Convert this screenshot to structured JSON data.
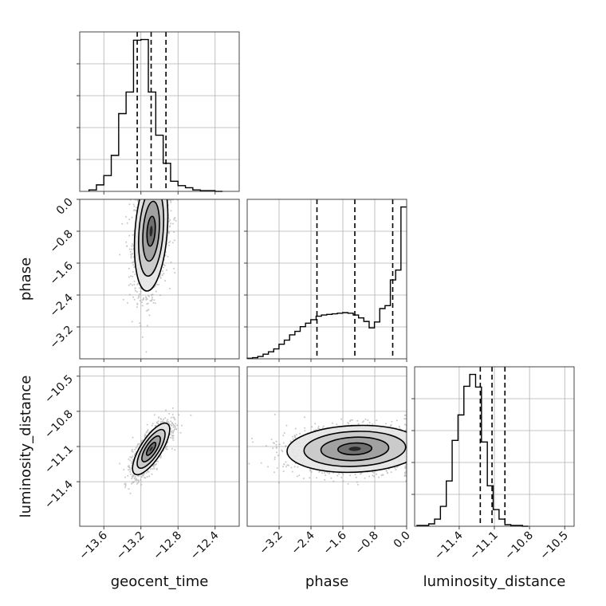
{
  "chart_data": {
    "type": "corner",
    "parameters": [
      {
        "name": "geocent_time",
        "range": [
          -13.86,
          -12.14
        ],
        "ticks": [
          -13.6,
          -13.2,
          -12.8,
          -12.4
        ],
        "tick_labels": [
          "−13.6",
          "−13.2",
          "−12.8",
          "−12.4"
        ],
        "quantiles": [
          -13.24,
          -13.09,
          -12.93
        ],
        "hist_edges_from": -13.76,
        "hist_bin_width": 0.08,
        "hist_counts": [
          2,
          9,
          22,
          50,
          108,
          138,
          210,
          211,
          138,
          78,
          39,
          14,
          8,
          5,
          2,
          1,
          1,
          0
        ]
      },
      {
        "name": "phase",
        "range": [
          -4.0,
          0.0
        ],
        "ticks": [
          -3.2,
          -2.4,
          -1.6,
          -0.8,
          0.0
        ],
        "tick_labels": [
          "−3.2",
          "−2.4",
          "−1.6",
          "−0.8",
          "0.0"
        ],
        "quantiles": [
          -2.25,
          -1.3,
          -0.35
        ],
        "hist_edges_from": -4.0,
        "hist_bin_width": 0.133,
        "hist_counts": [
          1,
          2,
          4,
          8,
          12,
          17,
          25,
          32,
          41,
          47,
          55,
          61,
          67,
          73,
          75,
          76,
          77,
          78,
          79,
          78,
          75,
          70,
          64,
          53,
          63,
          86,
          91,
          135,
          152,
          260
        ]
      },
      {
        "name": "luminosity_distance",
        "range": [
          -11.78,
          -10.42
        ],
        "ticks": [
          -11.4,
          -11.1,
          -10.8,
          -10.5
        ],
        "tick_labels": [
          "−11.4",
          "−11.1",
          "−10.8",
          "−10.5"
        ],
        "quantiles": [
          -11.22,
          -11.12,
          -11.01
        ],
        "hist_edges_from": -11.76,
        "hist_bin_width": 0.05,
        "hist_counts": [
          1,
          1,
          3,
          9,
          25,
          57,
          108,
          140,
          176,
          191,
          175,
          106,
          51,
          21,
          9,
          2,
          1,
          1,
          0
        ]
      }
    ],
    "pairs": [
      {
        "x": 0,
        "y": 1,
        "center": [
          -13.09,
          -0.8
        ],
        "spread": [
          0.09,
          0.75
        ],
        "corr": 0.25
      },
      {
        "x": 0,
        "y": 2,
        "center": [
          -13.09,
          -11.12
        ],
        "spread": [
          0.1,
          0.11
        ],
        "corr": 0.75
      },
      {
        "x": 1,
        "y": 2,
        "center": [
          -1.3,
          -11.12
        ],
        "spread": [
          0.85,
          0.1
        ],
        "corr": 0.1
      }
    ],
    "x_labels": [
      "geocent_time",
      "phase",
      "luminosity_distance"
    ],
    "y_labels": [
      "phase",
      "luminosity_distance"
    ]
  }
}
